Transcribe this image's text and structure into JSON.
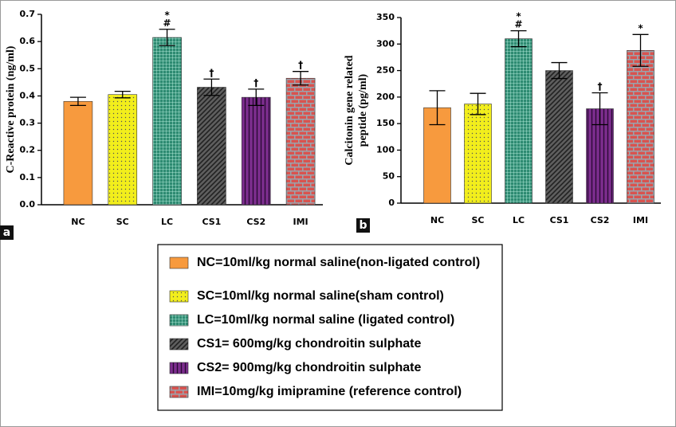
{
  "chart_data": [
    {
      "type": "bar",
      "panel_label": "a",
      "y_label": "C-Reactive protein (ng/ml)",
      "categories": [
        "NC",
        "SC",
        "LC",
        "CS1",
        "CS2",
        "IMI"
      ],
      "values": [
        0.38,
        0.405,
        0.615,
        0.432,
        0.395,
        0.465
      ],
      "errors": [
        0.015,
        0.012,
        0.03,
        0.03,
        0.03,
        0.025
      ],
      "markers": [
        [],
        [],
        [
          "*",
          "#"
        ],
        [
          "†"
        ],
        [
          "†"
        ],
        [
          "†"
        ]
      ],
      "colors": [
        "#f79a3e",
        "#f2ee1c",
        "#2e8b72",
        "#5e5e5e",
        "#7c2d8e",
        "#d9534f"
      ],
      "patterns": [
        "solid",
        "dots",
        "checks",
        "diagonal",
        "vertical",
        "brick"
      ],
      "ylim": [
        0,
        0.7
      ],
      "yticks": [
        {
          "value": 0,
          "label": "0.0"
        },
        0.1,
        0.2,
        0.3,
        0.4,
        0.5,
        0.6,
        0.7
      ]
    },
    {
      "type": "bar",
      "panel_label": "b",
      "y_label": [
        "Calcitonin gene related",
        "peptide (pg/ml)"
      ],
      "categories": [
        "NC",
        "SC",
        "LC",
        "CS1",
        "CS2",
        "IMI"
      ],
      "values": [
        180,
        187,
        310,
        250,
        178,
        288
      ],
      "errors": [
        32,
        20,
        15,
        15,
        30,
        30
      ],
      "markers": [
        [],
        [],
        [
          "*",
          "#"
        ],
        [],
        [
          "†"
        ],
        [
          "*"
        ]
      ],
      "colors": [
        "#f79a3e",
        "#f2ee1c",
        "#2e8b72",
        "#5e5e5e",
        "#7c2d8e",
        "#d9534f"
      ],
      "patterns": [
        "solid",
        "dots",
        "checks",
        "diagonal",
        "vertical",
        "brick"
      ],
      "ylim": [
        0,
        350
      ],
      "yticks": [
        0,
        50,
        100,
        150,
        200,
        250,
        300,
        350
      ]
    }
  ],
  "legend": {
    "entries": [
      "NC=10ml/kg normal saline(non-ligated control)",
      "SC=10ml/kg normal saline(sham control)",
      "LC=10ml/kg normal saline (ligated control)",
      "CS1= 600mg/kg chondroitin sulphate",
      "CS2= 900mg/kg chondroitin sulphate",
      "IMI=10mg/kg imipramine (reference control)"
    ]
  }
}
